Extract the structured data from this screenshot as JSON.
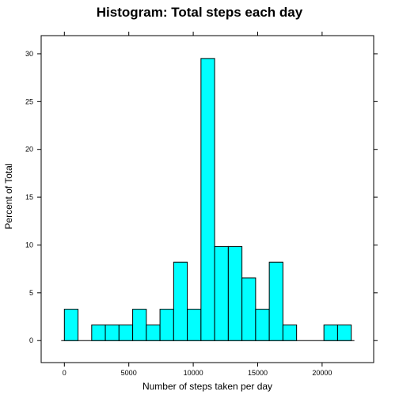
{
  "chart_data": {
    "type": "histogram",
    "title": "Histogram: Total steps each day",
    "xlabel": "Number of steps taken per day",
    "ylabel": "Percent of Total",
    "bin_width": 1060,
    "xlim": [
      -1800,
      24000
    ],
    "ylim": [
      -2.3,
      31.9
    ],
    "x_ticks": [
      0,
      5000,
      10000,
      15000,
      20000
    ],
    "y_ticks": [
      0,
      5,
      10,
      15,
      20,
      25,
      30
    ],
    "bar_color": "#00ffff",
    "bins": [
      {
        "start": 0,
        "end": 1060,
        "percent": 3.28
      },
      {
        "start": 1060,
        "end": 2120,
        "percent": 0
      },
      {
        "start": 2120,
        "end": 3180,
        "percent": 1.64
      },
      {
        "start": 3180,
        "end": 4240,
        "percent": 1.64
      },
      {
        "start": 4240,
        "end": 5300,
        "percent": 1.64
      },
      {
        "start": 5300,
        "end": 6360,
        "percent": 3.28
      },
      {
        "start": 6360,
        "end": 7420,
        "percent": 1.64
      },
      {
        "start": 7420,
        "end": 8480,
        "percent": 3.28
      },
      {
        "start": 8480,
        "end": 9540,
        "percent": 8.2
      },
      {
        "start": 9540,
        "end": 10600,
        "percent": 3.28
      },
      {
        "start": 10600,
        "end": 11660,
        "percent": 29.51
      },
      {
        "start": 11660,
        "end": 12720,
        "percent": 9.84
      },
      {
        "start": 12720,
        "end": 13780,
        "percent": 9.84
      },
      {
        "start": 13780,
        "end": 14840,
        "percent": 6.56
      },
      {
        "start": 14840,
        "end": 15900,
        "percent": 3.28
      },
      {
        "start": 15900,
        "end": 16960,
        "percent": 8.2
      },
      {
        "start": 16960,
        "end": 18020,
        "percent": 1.64
      },
      {
        "start": 18020,
        "end": 19080,
        "percent": 0
      },
      {
        "start": 19080,
        "end": 20140,
        "percent": 0
      },
      {
        "start": 20140,
        "end": 21200,
        "percent": 1.64
      },
      {
        "start": 21200,
        "end": 22260,
        "percent": 1.64
      }
    ]
  }
}
